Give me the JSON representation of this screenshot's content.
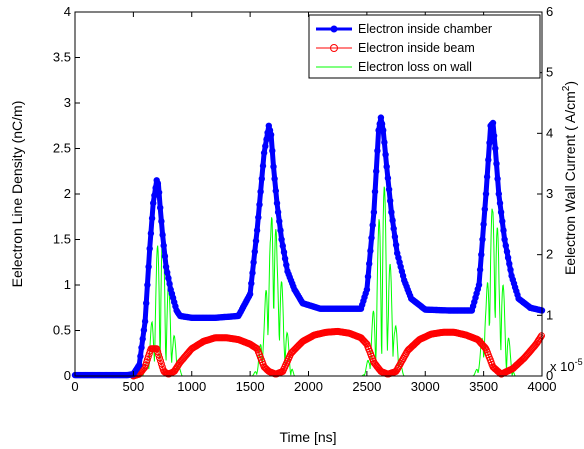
{
  "chart_data": {
    "type": "line",
    "xlabel": "Time [ns]",
    "ylabel_left": "Eelectron Line Density (nC/m)",
    "ylabel_right_prefix": "Eelectron Wall Current  ( A/cm",
    "ylabel_right_exp": "2",
    "ylabel_right_suffix": ")",
    "xlim": [
      0,
      4000
    ],
    "ylim_left": [
      0,
      4
    ],
    "ylim_right": [
      0,
      6
    ],
    "xticks": [
      0,
      500,
      1000,
      1500,
      2000,
      2500,
      3000,
      3500,
      4000
    ],
    "yticks_left": [
      "0",
      "0.5",
      "1",
      "1.5",
      "2",
      "2.5",
      "3",
      "3.5",
      "4"
    ],
    "yticks_right": [
      "0",
      "1",
      "2",
      "3",
      "4",
      "5",
      "6"
    ],
    "right_axis_multiplier_base": "x 10",
    "right_axis_multiplier_exp": "-5",
    "legend_position": "top-right",
    "grid": false,
    "series": [
      {
        "name": "Electron inside chamber",
        "color": "#0000ff",
        "axis": "left",
        "marker": "filled-circle",
        "x": [
          0,
          450,
          500,
          550,
          600,
          640,
          670,
          700,
          715,
          730,
          750,
          780,
          820,
          870,
          900,
          1000,
          1200,
          1400,
          1500,
          1560,
          1620,
          1660,
          1680,
          1700,
          1730,
          1770,
          1820,
          1880,
          1950,
          2100,
          2300,
          2450,
          2500,
          2560,
          2600,
          2620,
          2640,
          2670,
          2710,
          2760,
          2820,
          2880,
          3000,
          3200,
          3400,
          3460,
          3520,
          3560,
          3580,
          3600,
          3630,
          3680,
          3740,
          3800,
          3900,
          4000
        ],
        "values": [
          0.01,
          0.01,
          0.02,
          0.12,
          0.6,
          1.4,
          1.9,
          2.15,
          2.1,
          1.85,
          1.55,
          1.2,
          0.95,
          0.72,
          0.66,
          0.64,
          0.64,
          0.66,
          0.9,
          1.6,
          2.45,
          2.75,
          2.65,
          2.3,
          1.9,
          1.5,
          1.15,
          0.95,
          0.8,
          0.74,
          0.74,
          0.74,
          0.95,
          1.8,
          2.7,
          2.84,
          2.7,
          2.3,
          1.8,
          1.35,
          1.05,
          0.85,
          0.73,
          0.72,
          0.72,
          1.0,
          2.0,
          2.75,
          2.78,
          2.5,
          2.0,
          1.5,
          1.1,
          0.85,
          0.75,
          0.72
        ]
      },
      {
        "name": "Electron inside beam",
        "color": "#ff0000",
        "axis": "left",
        "marker": "open-circle",
        "x": [
          0,
          500,
          550,
          600,
          650,
          700,
          760,
          800,
          850,
          900,
          1000,
          1100,
          1200,
          1300,
          1400,
          1500,
          1560,
          1620,
          1660,
          1720,
          1780,
          1850,
          1950,
          2050,
          2150,
          2250,
          2350,
          2450,
          2500,
          2560,
          2620,
          2680,
          2750,
          2850,
          2950,
          3050,
          3150,
          3250,
          3350,
          3450,
          3520,
          3580,
          3650,
          3750,
          3850,
          3950,
          4000
        ],
        "values": [
          0.0,
          0.0,
          0.02,
          0.1,
          0.3,
          0.3,
          0.05,
          0.02,
          0.05,
          0.15,
          0.3,
          0.38,
          0.42,
          0.42,
          0.4,
          0.35,
          0.3,
          0.1,
          0.05,
          0.02,
          0.05,
          0.25,
          0.38,
          0.45,
          0.48,
          0.49,
          0.47,
          0.42,
          0.35,
          0.15,
          0.05,
          0.02,
          0.05,
          0.28,
          0.4,
          0.46,
          0.48,
          0.48,
          0.45,
          0.4,
          0.3,
          0.1,
          0.02,
          0.08,
          0.2,
          0.35,
          0.45
        ]
      },
      {
        "name": "Electron loss on wall",
        "color": "#00ff00",
        "axis": "right",
        "marker": "none",
        "peaks": [
          {
            "t": 730,
            "peak": 3.0
          },
          {
            "t": 1690,
            "peak": 3.6
          },
          {
            "t": 2630,
            "peak": 3.7
          },
          {
            "t": 3580,
            "peak": 3.7
          }
        ]
      }
    ]
  }
}
